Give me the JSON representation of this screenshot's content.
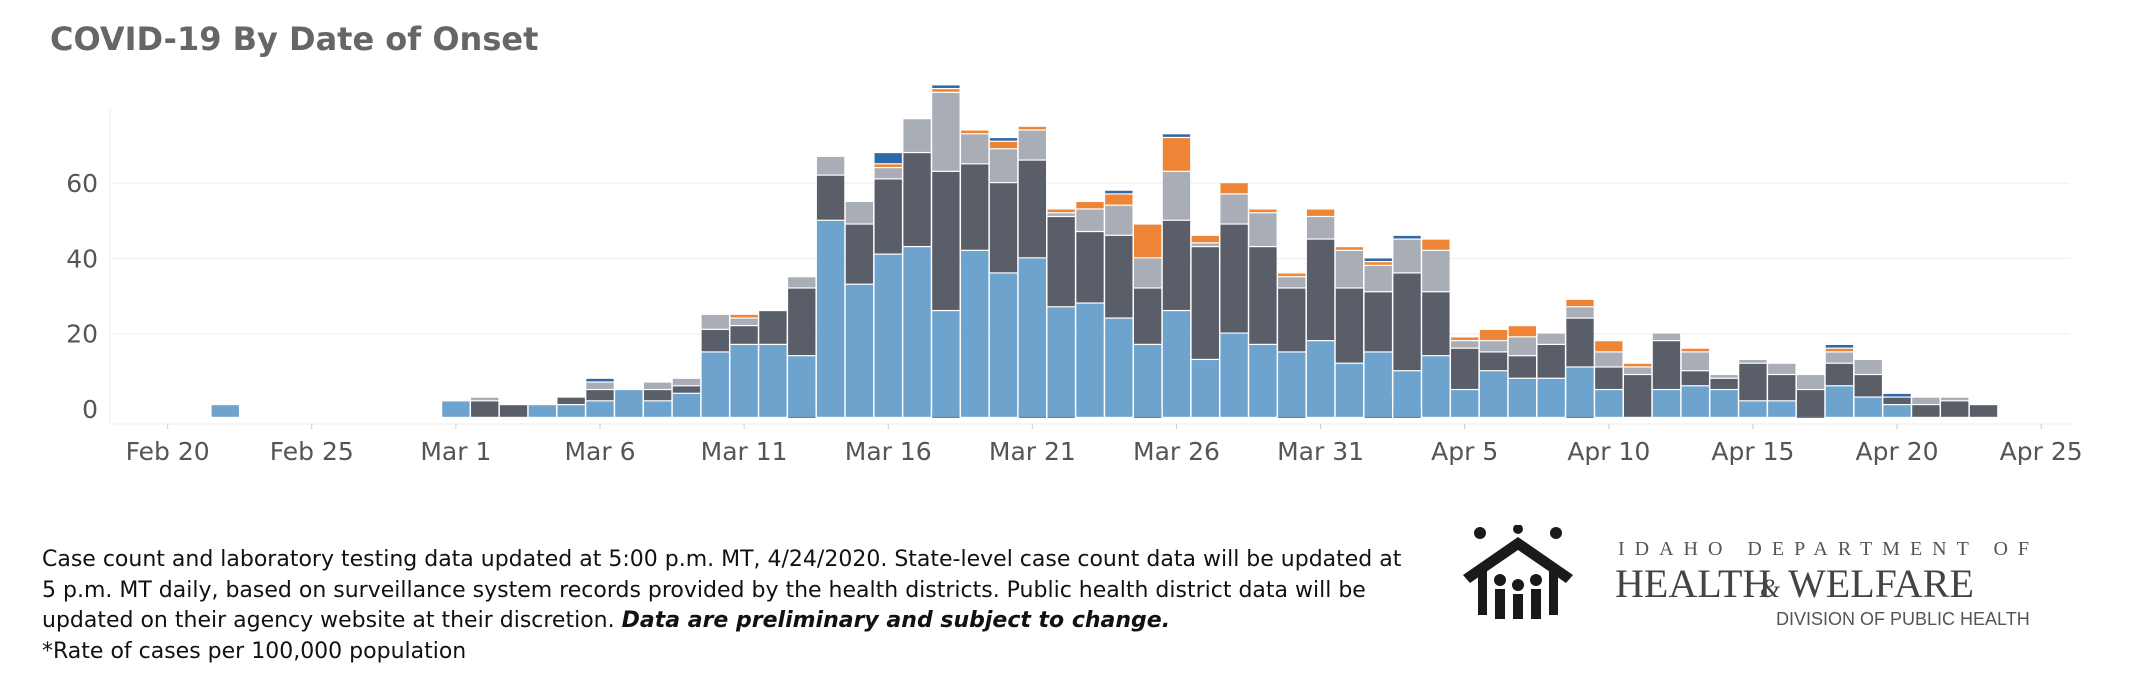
{
  "header": {
    "title": "COVID-19 By Date of Onset"
  },
  "chart_data": {
    "type": "bar",
    "stacked": true,
    "title": "COVID-19 By Date of Onset",
    "xlabel": "",
    "ylabel": "",
    "x_tick_labels": [
      "Feb 20",
      "Feb 25",
      "Mar 1",
      "Mar 6",
      "Mar 11",
      "Mar 16",
      "Mar 21",
      "Mar 26",
      "Mar 31",
      "Apr 5",
      "Apr 10",
      "Apr 15",
      "Apr 20",
      "Apr 25"
    ],
    "y_tick_labels": [
      "0",
      "20",
      "40",
      "60"
    ],
    "ylim": [
      -4,
      80
    ],
    "xlim": [
      "2020-02-18",
      "2020-04-26"
    ],
    "grid": true,
    "legend": "none",
    "colors": {
      "light_blue": "#6ea3cd",
      "dark_slate": "#595e69",
      "light_gray": "#a9adb5",
      "orange": "#ee8536",
      "dark_blue": "#2e6aa7",
      "mid_gray": "#7b8087",
      "gridline": "#eeeeee",
      "axis_text": "#555555",
      "title_text": "#666666"
    },
    "series_order": [
      "light_blue",
      "dark_slate",
      "light_gray",
      "orange",
      "dark_blue"
    ],
    "base_segments": [
      {
        "date": "2020-04-02",
        "color": "mid_gray",
        "value": 6
      },
      {
        "date": "2020-04-03",
        "color": "mid_gray",
        "value": 3
      },
      {
        "date": "2020-03-18",
        "color": "mid_gray",
        "value": 2
      },
      {
        "date": "2020-03-13",
        "color": "mid_gray",
        "value": 2
      },
      {
        "date": "2020-03-21",
        "color": "mid_gray",
        "value": 3
      },
      {
        "date": "2020-03-22",
        "color": "mid_gray",
        "value": 2
      },
      {
        "date": "2020-03-25",
        "color": "mid_gray",
        "value": 3
      },
      {
        "date": "2020-03-30",
        "color": "mid_gray",
        "value": 2
      },
      {
        "date": "2020-04-09",
        "color": "mid_gray",
        "value": 3
      },
      {
        "date": "2020-04-17",
        "color": "mid_gray",
        "value": 1
      }
    ],
    "bars": [
      {
        "date": "2020-02-22",
        "values": [
          1,
          0,
          0,
          0,
          0
        ]
      },
      {
        "date": "2020-03-01",
        "values": [
          2,
          0,
          0,
          0,
          0
        ]
      },
      {
        "date": "2020-03-02",
        "values": [
          0,
          2,
          1,
          0,
          0
        ]
      },
      {
        "date": "2020-03-03",
        "values": [
          0,
          1,
          0,
          0,
          0
        ]
      },
      {
        "date": "2020-03-04",
        "values": [
          1,
          0,
          0,
          0,
          0
        ]
      },
      {
        "date": "2020-03-05",
        "values": [
          1,
          2,
          0,
          0,
          0
        ]
      },
      {
        "date": "2020-03-06",
        "values": [
          2,
          3,
          2,
          0,
          1
        ]
      },
      {
        "date": "2020-03-07",
        "values": [
          5,
          0,
          0,
          0,
          0
        ]
      },
      {
        "date": "2020-03-08",
        "values": [
          2,
          3,
          2,
          0,
          0
        ]
      },
      {
        "date": "2020-03-09",
        "values": [
          4,
          2,
          2,
          0,
          0
        ]
      },
      {
        "date": "2020-03-10",
        "values": [
          15,
          6,
          4,
          0,
          0
        ]
      },
      {
        "date": "2020-03-11",
        "values": [
          17,
          5,
          2,
          1,
          0
        ]
      },
      {
        "date": "2020-03-12",
        "values": [
          17,
          9,
          0,
          0,
          0
        ]
      },
      {
        "date": "2020-03-13",
        "values": [
          14,
          18,
          3,
          0,
          0
        ]
      },
      {
        "date": "2020-03-14",
        "values": [
          50,
          12,
          5,
          0,
          0
        ]
      },
      {
        "date": "2020-03-15",
        "values": [
          33,
          16,
          6,
          0,
          0
        ]
      },
      {
        "date": "2020-03-16",
        "values": [
          41,
          20,
          3,
          1,
          3
        ]
      },
      {
        "date": "2020-03-17",
        "values": [
          43,
          25,
          9,
          0,
          0
        ]
      },
      {
        "date": "2020-03-18",
        "values": [
          26,
          37,
          21,
          1,
          1
        ]
      },
      {
        "date": "2020-03-19",
        "values": [
          42,
          23,
          8,
          1,
          0
        ]
      },
      {
        "date": "2020-03-20",
        "values": [
          36,
          24,
          9,
          2,
          1
        ]
      },
      {
        "date": "2020-03-21",
        "values": [
          40,
          26,
          8,
          1,
          0
        ]
      },
      {
        "date": "2020-03-22",
        "values": [
          27,
          24,
          1,
          1,
          0
        ]
      },
      {
        "date": "2020-03-23",
        "values": [
          28,
          19,
          6,
          2,
          0
        ]
      },
      {
        "date": "2020-03-24",
        "values": [
          24,
          22,
          8,
          3,
          1
        ]
      },
      {
        "date": "2020-03-25",
        "values": [
          17,
          15,
          8,
          9,
          0
        ]
      },
      {
        "date": "2020-03-26",
        "values": [
          26,
          24,
          13,
          9,
          1
        ]
      },
      {
        "date": "2020-03-27",
        "values": [
          13,
          30,
          1,
          2,
          0
        ]
      },
      {
        "date": "2020-03-28",
        "values": [
          20,
          29,
          8,
          3,
          0
        ]
      },
      {
        "date": "2020-03-29",
        "values": [
          17,
          26,
          9,
          1,
          0
        ]
      },
      {
        "date": "2020-03-30",
        "values": [
          15,
          17,
          3,
          1,
          0
        ]
      },
      {
        "date": "2020-03-31",
        "values": [
          18,
          27,
          6,
          2,
          0
        ]
      },
      {
        "date": "2020-04-01",
        "values": [
          12,
          20,
          10,
          1,
          0
        ]
      },
      {
        "date": "2020-04-02",
        "values": [
          15,
          16,
          7,
          1,
          1
        ]
      },
      {
        "date": "2020-04-03",
        "values": [
          10,
          26,
          9,
          0,
          1
        ]
      },
      {
        "date": "2020-04-04",
        "values": [
          14,
          17,
          11,
          3,
          0
        ]
      },
      {
        "date": "2020-04-05",
        "values": [
          5,
          11,
          2,
          1,
          0
        ]
      },
      {
        "date": "2020-04-06",
        "values": [
          10,
          5,
          3,
          3,
          0
        ]
      },
      {
        "date": "2020-04-07",
        "values": [
          8,
          6,
          5,
          3,
          0
        ]
      },
      {
        "date": "2020-04-08",
        "values": [
          8,
          9,
          3,
          0,
          0
        ]
      },
      {
        "date": "2020-04-09",
        "values": [
          11,
          13,
          3,
          2,
          0
        ]
      },
      {
        "date": "2020-04-10",
        "values": [
          5,
          6,
          4,
          3,
          0
        ]
      },
      {
        "date": "2020-04-11",
        "values": [
          0,
          9,
          2,
          1,
          0
        ]
      },
      {
        "date": "2020-04-12",
        "values": [
          5,
          13,
          2,
          0,
          0
        ]
      },
      {
        "date": "2020-04-13",
        "values": [
          6,
          4,
          5,
          1,
          0
        ]
      },
      {
        "date": "2020-04-14",
        "values": [
          5,
          3,
          1,
          0,
          0
        ]
      },
      {
        "date": "2020-04-15",
        "values": [
          2,
          10,
          1,
          0,
          0
        ]
      },
      {
        "date": "2020-04-16",
        "values": [
          2,
          7,
          3,
          0,
          0
        ]
      },
      {
        "date": "2020-04-17",
        "values": [
          0,
          5,
          4,
          0,
          0
        ]
      },
      {
        "date": "2020-04-18",
        "values": [
          6,
          6,
          3,
          1,
          1
        ]
      },
      {
        "date": "2020-04-19",
        "values": [
          3,
          6,
          4,
          0,
          0
        ]
      },
      {
        "date": "2020-04-20",
        "values": [
          1,
          2,
          0,
          0,
          1
        ]
      },
      {
        "date": "2020-04-21",
        "values": [
          0,
          1,
          2,
          0,
          0
        ]
      },
      {
        "date": "2020-04-22",
        "values": [
          0,
          2,
          1,
          0,
          0
        ]
      },
      {
        "date": "2020-04-23",
        "values": [
          0,
          1,
          0,
          0,
          0
        ]
      }
    ]
  },
  "footnote": {
    "line1": "Case count and laboratory testing data updated at 5:00 p.m. MT, 4/24/2020. State-level case count data will be updated at",
    "line2": "5 p.m. MT daily, based on surveillance system records provided by the health districts. Public health district data will be",
    "line3": "updated on their agency website at their discretion. ",
    "line3_emphasis": "Data are preliminary and subject to change.",
    "line4": "*Rate of cases per 100,000 population"
  },
  "logo": {
    "line1": "IDAHO DEPARTMENT OF",
    "line2a": "HEALTH",
    "amp": "&",
    "line2b": "WELFARE",
    "line3": "DIVISION OF PUBLIC HEALTH"
  }
}
